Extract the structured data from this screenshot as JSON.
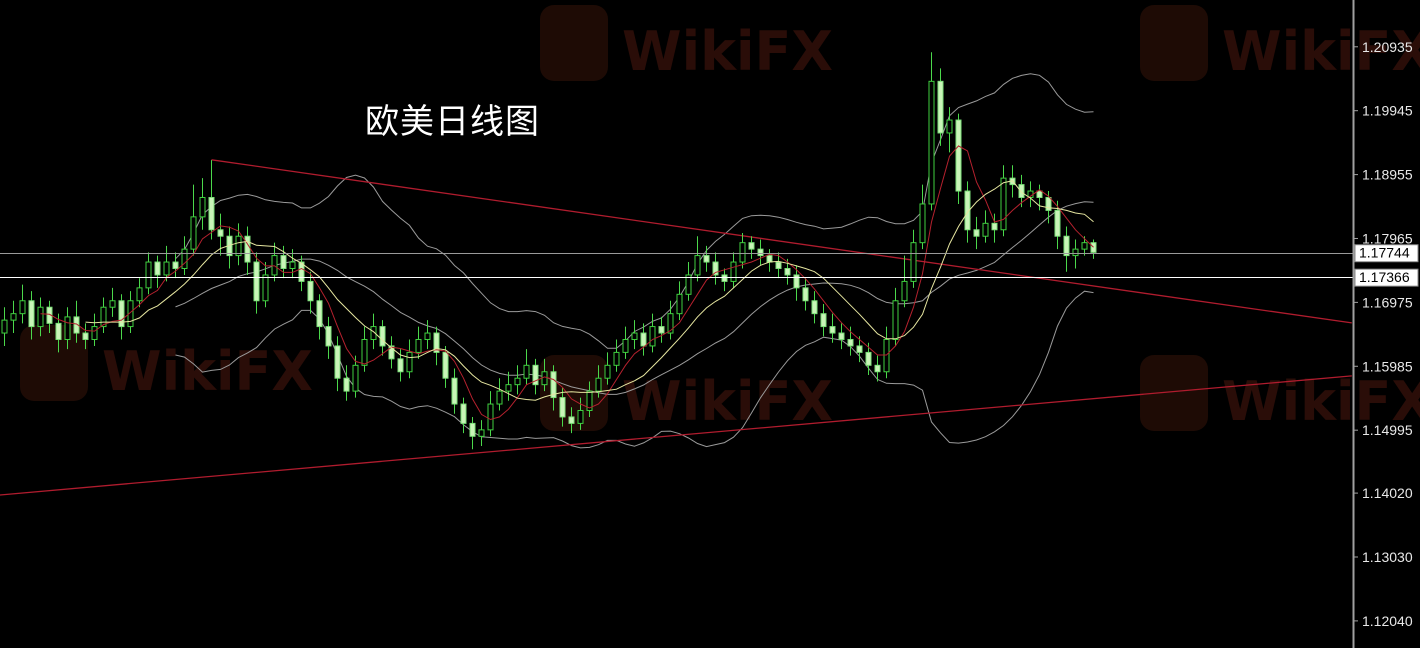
{
  "title": "欧美日线图",
  "watermark": "WikiFX",
  "colors": {
    "background": "#000000",
    "bull_outline": "#3fcf3f",
    "bear_fill": "#c9f5b8",
    "wick": "#4bd84b",
    "ma_fast": "#b5212e",
    "ma_slow": "#e6e6a0",
    "bands": "#9a9a9a",
    "trendline": "#b01c2e",
    "axis": "#a0a0a0"
  },
  "chart_data": {
    "type": "candlestick",
    "title": "欧美日线图",
    "ylim": [
      1.1162,
      1.2166
    ],
    "y_ticks": [
      "1.20935",
      "1.19945",
      "1.18955",
      "1.17965",
      "1.16975",
      "1.15985",
      "1.14995",
      "1.14020",
      "1.13030",
      "1.12040"
    ],
    "grid": false,
    "indicators": [
      {
        "type": "SMA",
        "period": 5,
        "color": "#b5212e"
      },
      {
        "type": "SMA",
        "period": 10,
        "color": "#e6e6a0"
      },
      {
        "type": "Bollinger",
        "period": 20,
        "deviation": 2,
        "color": "#9a9a9a"
      }
    ],
    "horizontal_lines": [
      {
        "price": "1.17744",
        "color": "#9a9a9a"
      },
      {
        "price": "1.17366",
        "color": "#ffffff"
      }
    ],
    "trendlines": [
      {
        "from": [
          23,
          1.19184
        ],
        "to": [
          149.7,
          1.16657
        ],
        "color": "#b01c2e"
      },
      {
        "from": [
          -0.5,
          1.13991
        ],
        "to": [
          149.7,
          1.15836
        ],
        "color": "#b01c2e"
      }
    ],
    "ohlc": [
      [
        1.165,
        1.169,
        1.163,
        1.167
      ],
      [
        1.167,
        1.17,
        1.165,
        1.168
      ],
      [
        1.168,
        1.1725,
        1.1665,
        1.17
      ],
      [
        1.17,
        1.1715,
        1.164,
        1.166
      ],
      [
        1.166,
        1.1705,
        1.1645,
        1.169
      ],
      [
        1.169,
        1.17,
        1.165,
        1.1665
      ],
      [
        1.1665,
        1.168,
        1.162,
        1.164
      ],
      [
        1.164,
        1.169,
        1.1625,
        1.1675
      ],
      [
        1.1675,
        1.17,
        1.1635,
        1.165
      ],
      [
        1.165,
        1.1665,
        1.1625,
        1.164
      ],
      [
        1.164,
        1.168,
        1.163,
        1.166
      ],
      [
        1.166,
        1.1705,
        1.165,
        1.169
      ],
      [
        1.169,
        1.172,
        1.1675,
        1.17
      ],
      [
        1.17,
        1.171,
        1.164,
        1.166
      ],
      [
        1.166,
        1.1715,
        1.165,
        1.17
      ],
      [
        1.17,
        1.1735,
        1.169,
        1.172
      ],
      [
        1.172,
        1.1775,
        1.171,
        1.176
      ],
      [
        1.176,
        1.177,
        1.172,
        1.174
      ],
      [
        1.174,
        1.1785,
        1.173,
        1.176
      ],
      [
        1.176,
        1.1775,
        1.1735,
        1.175
      ],
      [
        1.175,
        1.18,
        1.174,
        1.178
      ],
      [
        1.178,
        1.188,
        1.177,
        1.183
      ],
      [
        1.183,
        1.189,
        1.181,
        1.186
      ],
      [
        1.186,
        1.1918,
        1.1795,
        1.181
      ],
      [
        1.181,
        1.1835,
        1.177,
        1.18
      ],
      [
        1.18,
        1.1815,
        1.175,
        1.177
      ],
      [
        1.177,
        1.182,
        1.1755,
        1.18
      ],
      [
        1.18,
        1.1815,
        1.174,
        1.176
      ],
      [
        1.176,
        1.1775,
        1.168,
        1.17
      ],
      [
        1.17,
        1.176,
        1.169,
        1.174
      ],
      [
        1.174,
        1.179,
        1.173,
        1.177
      ],
      [
        1.177,
        1.1785,
        1.1735,
        1.175
      ],
      [
        1.175,
        1.178,
        1.1735,
        1.176
      ],
      [
        1.176,
        1.177,
        1.1715,
        1.173
      ],
      [
        1.173,
        1.1745,
        1.168,
        1.17
      ],
      [
        1.17,
        1.171,
        1.164,
        1.166
      ],
      [
        1.166,
        1.1675,
        1.161,
        1.163
      ],
      [
        1.163,
        1.1645,
        1.156,
        1.158
      ],
      [
        1.158,
        1.16,
        1.1545,
        1.156
      ],
      [
        1.156,
        1.1615,
        1.155,
        1.16
      ],
      [
        1.16,
        1.166,
        1.159,
        1.164
      ],
      [
        1.164,
        1.168,
        1.1625,
        1.166
      ],
      [
        1.166,
        1.167,
        1.1615,
        1.163
      ],
      [
        1.163,
        1.1645,
        1.1595,
        1.161
      ],
      [
        1.161,
        1.1625,
        1.1575,
        1.159
      ],
      [
        1.159,
        1.164,
        1.158,
        1.162
      ],
      [
        1.162,
        1.166,
        1.161,
        1.164
      ],
      [
        1.164,
        1.167,
        1.1625,
        1.165
      ],
      [
        1.165,
        1.166,
        1.16,
        1.162
      ],
      [
        1.162,
        1.163,
        1.1565,
        1.158
      ],
      [
        1.158,
        1.1595,
        1.1525,
        1.154
      ],
      [
        1.154,
        1.155,
        1.1495,
        1.151
      ],
      [
        1.151,
        1.152,
        1.147,
        1.149
      ],
      [
        1.149,
        1.1515,
        1.1475,
        1.15
      ],
      [
        1.15,
        1.156,
        1.149,
        1.154
      ],
      [
        1.154,
        1.158,
        1.153,
        1.156
      ],
      [
        1.156,
        1.159,
        1.1545,
        1.157
      ],
      [
        1.157,
        1.16,
        1.1555,
        1.158
      ],
      [
        1.158,
        1.1625,
        1.157,
        1.16
      ],
      [
        1.16,
        1.161,
        1.1555,
        1.157
      ],
      [
        1.157,
        1.161,
        1.156,
        1.159
      ],
      [
        1.159,
        1.16,
        1.153,
        1.155
      ],
      [
        1.155,
        1.1565,
        1.1505,
        1.152
      ],
      [
        1.152,
        1.1535,
        1.1495,
        1.151
      ],
      [
        1.151,
        1.155,
        1.15,
        1.153
      ],
      [
        1.153,
        1.1575,
        1.152,
        1.156
      ],
      [
        1.156,
        1.16,
        1.155,
        1.158
      ],
      [
        1.158,
        1.162,
        1.157,
        1.16
      ],
      [
        1.16,
        1.164,
        1.159,
        1.162
      ],
      [
        1.162,
        1.166,
        1.161,
        1.164
      ],
      [
        1.164,
        1.167,
        1.1625,
        1.165
      ],
      [
        1.165,
        1.1665,
        1.1615,
        1.163
      ],
      [
        1.163,
        1.168,
        1.162,
        1.166
      ],
      [
        1.166,
        1.1675,
        1.1635,
        1.165
      ],
      [
        1.165,
        1.17,
        1.164,
        1.168
      ],
      [
        1.168,
        1.173,
        1.167,
        1.171
      ],
      [
        1.171,
        1.176,
        1.17,
        1.174
      ],
      [
        1.174,
        1.18,
        1.173,
        1.177
      ],
      [
        1.177,
        1.1785,
        1.1745,
        1.176
      ],
      [
        1.176,
        1.1775,
        1.1725,
        1.174
      ],
      [
        1.174,
        1.175,
        1.1715,
        1.173
      ],
      [
        1.173,
        1.1775,
        1.172,
        1.176
      ],
      [
        1.176,
        1.1805,
        1.175,
        1.179
      ],
      [
        1.179,
        1.18,
        1.1765,
        1.178
      ],
      [
        1.178,
        1.1795,
        1.1755,
        1.177
      ],
      [
        1.177,
        1.178,
        1.1745,
        1.176
      ],
      [
        1.176,
        1.1775,
        1.1735,
        1.175
      ],
      [
        1.175,
        1.1765,
        1.1725,
        1.174
      ],
      [
        1.174,
        1.1755,
        1.17,
        1.172
      ],
      [
        1.172,
        1.1735,
        1.1685,
        1.17
      ],
      [
        1.17,
        1.1715,
        1.1665,
        1.168
      ],
      [
        1.168,
        1.1695,
        1.1645,
        1.166
      ],
      [
        1.166,
        1.168,
        1.1635,
        1.165
      ],
      [
        1.165,
        1.1665,
        1.1625,
        1.164
      ],
      [
        1.164,
        1.166,
        1.1615,
        1.163
      ],
      [
        1.163,
        1.1645,
        1.1605,
        1.162
      ],
      [
        1.162,
        1.1635,
        1.1585,
        1.16
      ],
      [
        1.16,
        1.1615,
        1.1575,
        1.159
      ],
      [
        1.159,
        1.166,
        1.158,
        1.164
      ],
      [
        1.164,
        1.172,
        1.163,
        1.17
      ],
      [
        1.17,
        1.177,
        1.169,
        1.173
      ],
      [
        1.173,
        1.181,
        1.172,
        1.179
      ],
      [
        1.179,
        1.188,
        1.178,
        1.185
      ],
      [
        1.185,
        1.2085,
        1.184,
        1.204
      ],
      [
        1.204,
        1.206,
        1.194,
        1.196
      ],
      [
        1.196,
        1.2,
        1.193,
        1.198
      ],
      [
        1.198,
        1.199,
        1.185,
        1.187
      ],
      [
        1.187,
        1.1885,
        1.179,
        1.181
      ],
      [
        1.181,
        1.183,
        1.178,
        1.18
      ],
      [
        1.18,
        1.184,
        1.179,
        1.182
      ],
      [
        1.182,
        1.1835,
        1.179,
        1.181
      ],
      [
        1.181,
        1.191,
        1.18,
        1.189
      ],
      [
        1.189,
        1.191,
        1.186,
        1.188
      ],
      [
        1.188,
        1.1895,
        1.1845,
        1.186
      ],
      [
        1.186,
        1.1885,
        1.1845,
        1.187
      ],
      [
        1.187,
        1.188,
        1.184,
        1.186
      ],
      [
        1.186,
        1.187,
        1.182,
        1.184
      ],
      [
        1.184,
        1.1855,
        1.178,
        1.18
      ],
      [
        1.18,
        1.1815,
        1.1745,
        1.177
      ],
      [
        1.177,
        1.1795,
        1.175,
        1.178
      ],
      [
        1.178,
        1.18,
        1.177,
        1.179
      ],
      [
        1.179,
        1.1795,
        1.1765,
        1.1775
      ]
    ]
  }
}
